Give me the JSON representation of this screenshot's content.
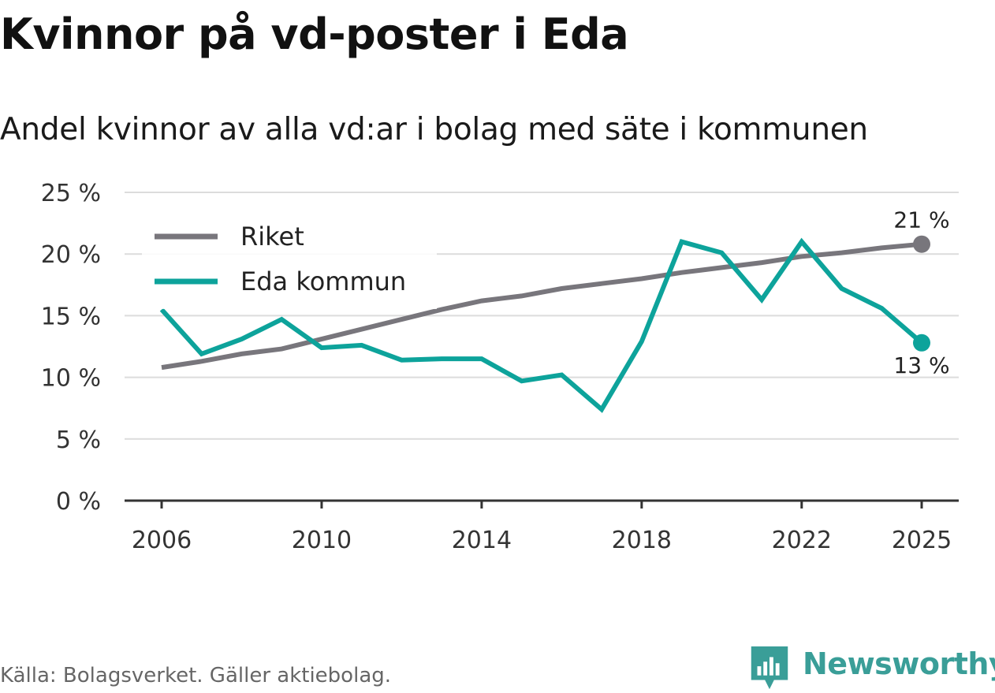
{
  "title": "Kvinnor på vd-poster i Eda",
  "subtitle": "Andel kvinnor av alla vd:ar i bolag med säte i kommunen",
  "footer": {
    "source": "Källa: Bolagsverket. Gäller aktiebolag."
  },
  "brand": {
    "name": "Newsworthy",
    "color": "#3a9e98"
  },
  "chart_data": {
    "type": "line",
    "title": "Kvinnor på vd-poster i Eda",
    "subtitle": "Andel kvinnor av alla vd:ar i bolag med säte i kommunen",
    "xlabel": "",
    "ylabel": "",
    "ylim": [
      0,
      25
    ],
    "xlim": [
      2006,
      2025
    ],
    "y_ticks": [
      0,
      5,
      10,
      15,
      20,
      25
    ],
    "y_tick_labels": [
      "0 %",
      "5 %",
      "10 %",
      "15 %",
      "20 %",
      "25 %"
    ],
    "x_ticks": [
      2006,
      2010,
      2014,
      2018,
      2022,
      2025
    ],
    "x_tick_labels": [
      "2006",
      "2010",
      "2014",
      "2018",
      "2022",
      "2025"
    ],
    "grid": true,
    "legend_position": "top-left",
    "x": [
      2006,
      2007,
      2008,
      2009,
      2010,
      2011,
      2012,
      2013,
      2014,
      2015,
      2016,
      2017,
      2018,
      2019,
      2020,
      2021,
      2022,
      2023,
      2024,
      2025
    ],
    "series": [
      {
        "name": "Riket",
        "color": "#78767c",
        "values": [
          10.8,
          11.3,
          11.9,
          12.3,
          13.1,
          13.9,
          14.7,
          15.5,
          16.2,
          16.6,
          17.2,
          17.6,
          18.0,
          18.5,
          18.9,
          19.3,
          19.8,
          20.1,
          20.5,
          20.8
        ],
        "end_label": "21 %"
      },
      {
        "name": "Eda kommun",
        "color": "#0da39b",
        "values": [
          15.5,
          11.9,
          13.1,
          14.7,
          12.4,
          12.6,
          11.4,
          11.5,
          11.5,
          9.7,
          10.2,
          7.4,
          12.9,
          21.0,
          20.1,
          16.3,
          21.0,
          17.2,
          15.6,
          12.8
        ],
        "end_label": "13 %"
      }
    ]
  }
}
